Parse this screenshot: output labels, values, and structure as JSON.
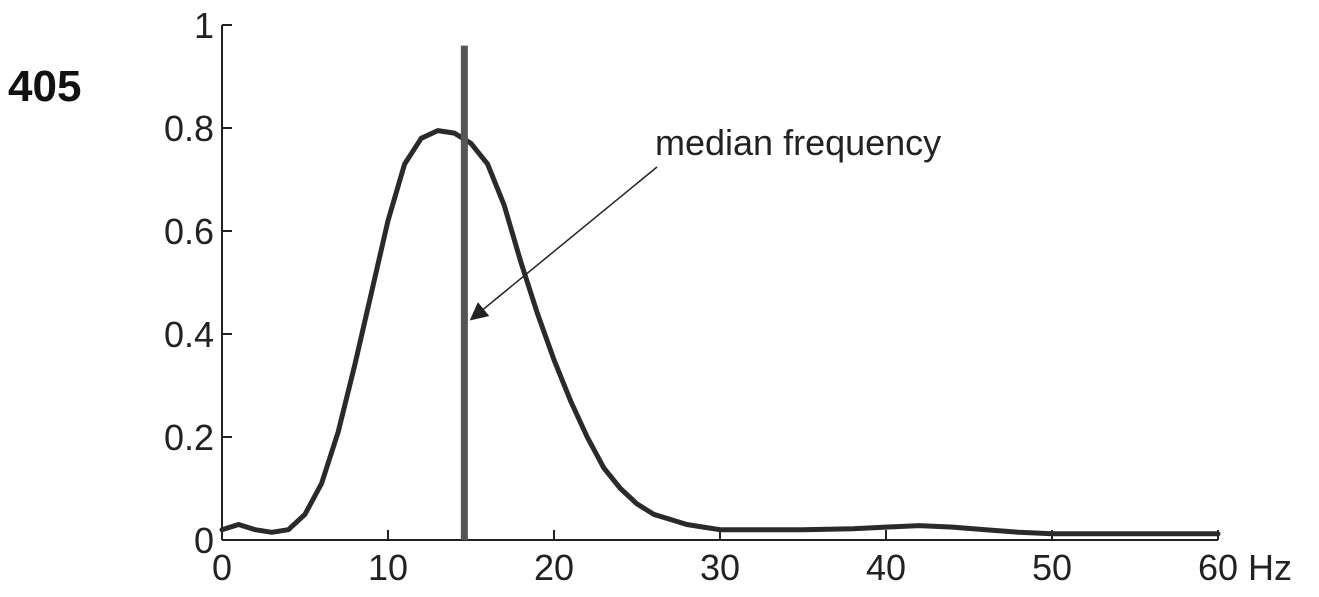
{
  "figure_label": "405",
  "chart_data": {
    "type": "line",
    "title": "",
    "xlabel": "",
    "ylabel": "",
    "x_unit": "Hz",
    "xlim": [
      0,
      60
    ],
    "ylim": [
      0,
      1
    ],
    "xticks": [
      "0",
      "10",
      "20",
      "30",
      "40",
      "50",
      "60"
    ],
    "yticks": [
      "0",
      "0.2",
      "0.4",
      "0.6",
      "0.8",
      "1"
    ],
    "grid": false,
    "series": [
      {
        "x": [
          0,
          1,
          2,
          3,
          4,
          5,
          6,
          7,
          8,
          9,
          10,
          11,
          12,
          13,
          14,
          15,
          16,
          17,
          18,
          19,
          20,
          21,
          22,
          23,
          24,
          25,
          26,
          27,
          28,
          29,
          30,
          32,
          35,
          38,
          40,
          42,
          44,
          46,
          48,
          50,
          52,
          54,
          56,
          58,
          60
        ],
        "y": [
          0.02,
          0.03,
          0.02,
          0.015,
          0.02,
          0.05,
          0.11,
          0.21,
          0.34,
          0.48,
          0.62,
          0.73,
          0.78,
          0.795,
          0.79,
          0.77,
          0.73,
          0.65,
          0.54,
          0.44,
          0.35,
          0.27,
          0.2,
          0.14,
          0.1,
          0.07,
          0.05,
          0.04,
          0.03,
          0.025,
          0.02,
          0.02,
          0.02,
          0.022,
          0.025,
          0.028,
          0.025,
          0.02,
          0.015,
          0.012,
          0.012,
          0.012,
          0.012,
          0.012,
          0.012
        ],
        "color": "#2a2a2a"
      }
    ],
    "markers": [
      {
        "x": 14.6,
        "y_top": 0.96,
        "color": "#555555"
      }
    ],
    "annotations": [
      {
        "text": "median frequency",
        "arrow_to": {
          "x": 14.7,
          "y": 0.43
        }
      }
    ]
  }
}
